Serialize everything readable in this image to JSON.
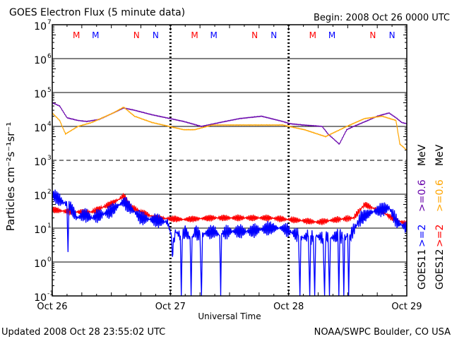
{
  "chart_data": {
    "type": "line",
    "title": "GOES Electron Flux (5 minute data)",
    "begin": "Begin: 2008 Oct 26 0000 UTC",
    "xlabel": "Universal Time",
    "ylabel": "Particles cm⁻²s⁻¹sr⁻¹",
    "x_unit": "hours since 2008 Oct 26 0000 UTC",
    "xlim": [
      0,
      72
    ],
    "ylim": [
      0.1,
      10000000
    ],
    "yscale": "log",
    "x_ticks": [
      {
        "h": 0,
        "label": "Oct 26"
      },
      {
        "h": 24,
        "label": "Oct 27"
      },
      {
        "h": 48,
        "label": "Oct 28"
      },
      {
        "h": 72,
        "label": "Oct 29"
      }
    ],
    "y_ticks": [
      {
        "exp": 7,
        "label": "10",
        "sup": "7"
      },
      {
        "exp": 6,
        "label": "10",
        "sup": "6"
      },
      {
        "exp": 5,
        "label": "10",
        "sup": "5"
      },
      {
        "exp": 4,
        "label": "10",
        "sup": "4"
      },
      {
        "exp": 3,
        "label": "10",
        "sup": "3"
      },
      {
        "exp": 2,
        "label": "10",
        "sup": "2"
      },
      {
        "exp": 1,
        "label": "10",
        "sup": "1"
      },
      {
        "exp": 0,
        "label": "10",
        "sup": "0"
      },
      {
        "exp": -1,
        "label": "10",
        "sup": "-1"
      }
    ],
    "dashed_gridlines_exp": [
      3
    ],
    "markers": [
      {
        "label": "M",
        "h": 4.9,
        "color": "#ff0000"
      },
      {
        "label": "M",
        "h": 8.8,
        "color": "#0000ff"
      },
      {
        "label": "N",
        "h": 17.1,
        "color": "#ff0000"
      },
      {
        "label": "N",
        "h": 21.0,
        "color": "#0000ff"
      },
      {
        "label": "M",
        "h": 28.9,
        "color": "#ff0000"
      },
      {
        "label": "M",
        "h": 32.8,
        "color": "#0000ff"
      },
      {
        "label": "N",
        "h": 41.1,
        "color": "#ff0000"
      },
      {
        "label": "N",
        "h": 45.0,
        "color": "#0000ff"
      },
      {
        "label": "M",
        "h": 52.9,
        "color": "#ff0000"
      },
      {
        "label": "M",
        "h": 56.8,
        "color": "#0000ff"
      },
      {
        "label": "N",
        "h": 65.1,
        "color": "#ff0000"
      },
      {
        "label": "N",
        "h": 69.0,
        "color": "#0000ff"
      }
    ],
    "series": [
      {
        "name": "GOES11 >=0.6 MeV",
        "color": "#6600aa",
        "x": [
          0,
          1.5,
          3,
          5.2,
          7,
          9.5,
          12.4,
          14.5,
          16.7,
          20.3,
          26.7,
          30.3,
          34,
          38,
          42.5,
          46.8,
          48.3,
          51,
          54.8,
          56,
          58.3,
          59.8,
          61.2,
          64.1,
          66,
          68.4,
          69.8,
          71,
          72
        ],
        "y": [
          50000,
          40000,
          18000,
          15000,
          14000,
          16000,
          25000,
          35000,
          30000,
          22000,
          14000,
          10000,
          13000,
          17000,
          20000,
          14000,
          12000,
          11000,
          10000,
          6000,
          3000,
          8000,
          10000,
          15000,
          20000,
          25000,
          18000,
          13000,
          12000
        ]
      },
      {
        "name": "GOES12 >=0.6 MeV",
        "color": "#ffa500",
        "x": [
          0,
          1.5,
          2.7,
          5.2,
          8,
          12.4,
          14.5,
          16.7,
          20.3,
          26.7,
          28.9,
          32.5,
          40,
          46.8,
          51.2,
          55.5,
          59.8,
          63.4,
          67,
          69.8,
          70.6,
          72
        ],
        "y": [
          25000,
          15000,
          6000,
          10000,
          13000,
          25000,
          37000,
          20000,
          13000,
          8000,
          8000,
          11000,
          11000,
          11000,
          8000,
          5000,
          10000,
          17000,
          20000,
          15000,
          3000,
          2000
        ]
      },
      {
        "name": "GOES12 >=2 MeV",
        "color": "#ff0000",
        "x": [
          0,
          3.5,
          8,
          11.6,
          13.5,
          14.5,
          16.2,
          20.9,
          26.7,
          32.5,
          40,
          44,
          50,
          54,
          58,
          61.2,
          63.4,
          67,
          69,
          72
        ],
        "y": [
          35,
          30,
          30,
          50,
          70,
          90,
          40,
          20,
          18,
          20,
          20,
          20,
          17,
          15,
          18,
          20,
          50,
          30,
          20,
          13
        ]
      },
      {
        "name": "GOES11 >=2 MeV",
        "color": "#0000ff",
        "x": [
          0,
          2,
          3,
          3.2,
          3.4,
          5,
          6.5,
          8,
          11.6,
          14.5,
          18,
          23.4,
          24.2,
          24.4,
          25,
          26,
          26.2,
          26.4,
          27,
          28,
          28.2,
          28.4,
          29,
          30,
          30.3,
          30.5,
          31,
          33,
          34,
          34.2,
          34.4,
          36,
          40,
          44,
          46.8,
          50,
          50.3,
          50.5,
          52,
          52.3,
          52.5,
          53,
          53.3,
          53.5,
          55,
          55.3,
          55.5,
          56,
          56.3,
          56.5,
          58,
          58.2,
          58.4,
          59,
          59.2,
          59.4,
          60,
          60.2,
          60.4,
          61,
          62.7,
          65,
          68.4,
          70,
          72
        ],
        "y": [
          100,
          60,
          50,
          3,
          50,
          20,
          25,
          20,
          30,
          60,
          20,
          15,
          6,
          2,
          8,
          6,
          0.1,
          6,
          8,
          5,
          0.1,
          5,
          8,
          6,
          0.1,
          6,
          7,
          8,
          6,
          0.1,
          7,
          8,
          8,
          10,
          10,
          6,
          0.1,
          5,
          6,
          0.1,
          5,
          6,
          0.1,
          6,
          5,
          0.1,
          5,
          6,
          0.1,
          5,
          6,
          0.1,
          6,
          5,
          0.1,
          5,
          6,
          0.1,
          5,
          8,
          20,
          30,
          40,
          15,
          10
        ]
      }
    ],
    "legend": {
      "col1": {
        "energy1": ">=2",
        "energy2": ">=0.6",
        "unit": "MeV",
        "satellite": "GOES11"
      },
      "col2": {
        "energy1": ">=2",
        "energy2": ">=0.6",
        "unit": "MeV",
        "satellite": "GOES12"
      }
    }
  },
  "footer": {
    "updated": "Updated 2008 Oct 28 23:55:02 UTC",
    "credit": "NOAA/SWPC Boulder, CO USA"
  }
}
